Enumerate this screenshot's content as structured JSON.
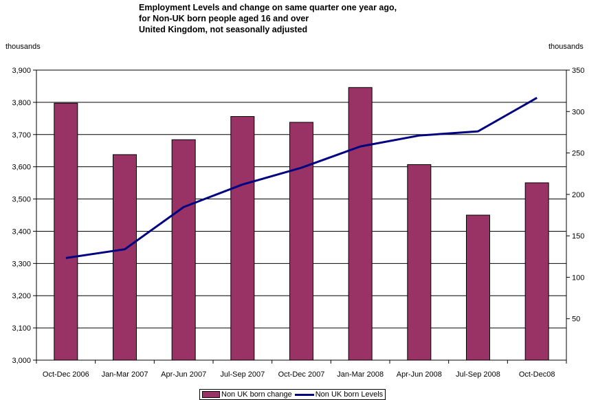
{
  "chart_data": {
    "type": "bar",
    "title_lines": [
      "Employment Levels and change on same quarter one year ago,",
      "for Non-UK born people aged 16 and over",
      "United Kingdom, not seasonally adjusted"
    ],
    "left_unit_label": "thousands",
    "right_unit_label": "thousands",
    "categories": [
      "Oct-Dec 2006",
      "Jan-Mar 2007",
      "Apr-Jun 2007",
      "Jul-Sep 2007",
      "Oct-Dec 2007",
      "Jan-Mar 2008",
      "Apr-Jun 2008",
      "Jul-Sep 2008",
      "Oct-Dec08"
    ],
    "left_axis": {
      "min": 3000,
      "max": 3900,
      "step": 100,
      "tick_labels": [
        "3,000",
        "3,100",
        "3,200",
        "3,300",
        "3,400",
        "3,500",
        "3,600",
        "3,700",
        "3,800",
        "3,900"
      ]
    },
    "right_axis": {
      "min": 0,
      "max": 350,
      "step": 50,
      "tick_labels": [
        "50",
        "100",
        "150",
        "200",
        "250",
        "300",
        "350"
      ]
    },
    "series": [
      {
        "name": "Non UK born change",
        "type": "bar",
        "axis": "right",
        "color": "#993366",
        "values": [
          310,
          248,
          266,
          294,
          287,
          329,
          236,
          175,
          214
        ]
      },
      {
        "name": "Non UK born Levels",
        "type": "line",
        "axis": "left",
        "color": "#000080",
        "values": [
          3317,
          3344,
          3475,
          3545,
          3597,
          3663,
          3697,
          3710,
          3814
        ]
      }
    ],
    "grid": true,
    "legend_position": "bottom"
  }
}
